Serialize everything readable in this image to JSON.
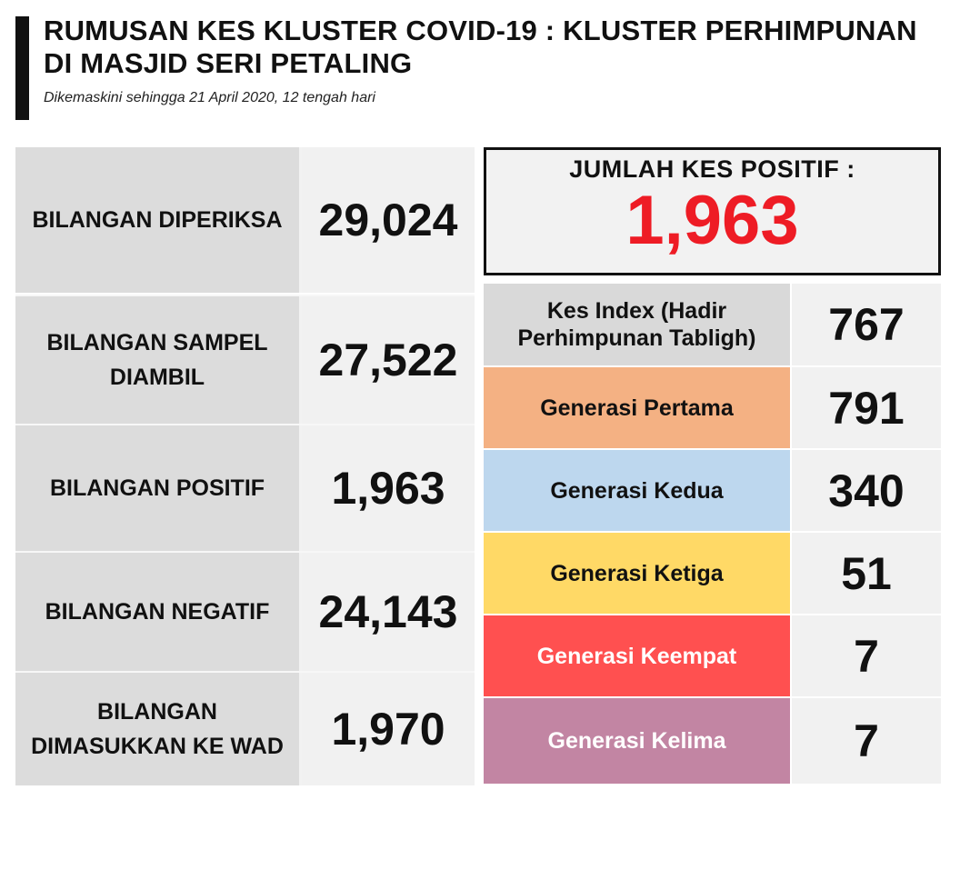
{
  "header": {
    "title_line1": "RUMUSAN KES KLUSTER COVID-19 : KLUSTER PERHIMPUNAN",
    "title_line2": "DI MASJID SERI PETALING",
    "subtitle": "Dikemaskini sehingga 21 April 2020, 12 tengah hari"
  },
  "summary": {
    "rows": [
      {
        "label": "BILANGAN DIPERIKSA",
        "value": "29,024"
      },
      {
        "label": "BILANGAN SAMPEL DIAMBIL",
        "value": "27,522"
      },
      {
        "label": "BILANGAN POSITIF",
        "value": "1,963"
      },
      {
        "label": "BILANGAN NEGATIF",
        "value": "24,143"
      },
      {
        "label": "BILANGAN DIMASUKKAN KE WAD",
        "value": "1,970"
      }
    ]
  },
  "total": {
    "label": "JUMLAH KES POSITIF :",
    "value": "1,963",
    "color": "#ee1c25"
  },
  "generations": {
    "rows": [
      {
        "label": "Kes Index (Hadir Perhimpunan Tabligh)",
        "value": "767",
        "color": "#d9d9d9",
        "text_color": "#111111"
      },
      {
        "label": "Generasi Pertama",
        "value": "791",
        "color": "#f4b183",
        "text_color": "#111111"
      },
      {
        "label": "Generasi Kedua",
        "value": "340",
        "color": "#bdd7ee",
        "text_color": "#111111"
      },
      {
        "label": "Generasi Ketiga",
        "value": "51",
        "color": "#ffd966",
        "text_color": "#111111"
      },
      {
        "label": "Generasi Keempat",
        "value": "7",
        "color": "#ff5050",
        "text_color": "#ffffff"
      },
      {
        "label": "Generasi Kelima",
        "value": "7",
        "color": "#c285a3",
        "text_color": "#ffffff"
      }
    ]
  }
}
